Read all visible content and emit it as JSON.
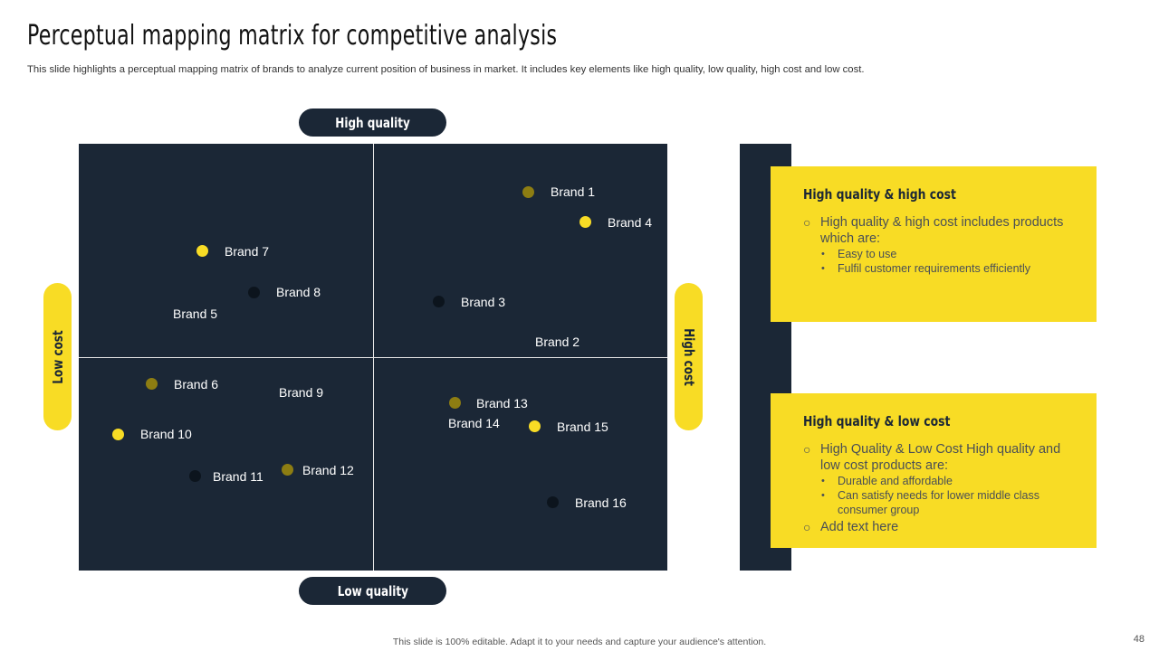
{
  "title": "Perceptual mapping matrix for competitive analysis",
  "subtitle": "This slide highlights a perceptual mapping matrix of brands to analyze current position of business in market. It includes key elements like high quality, low quality, high cost and low cost.",
  "axes": {
    "top": "High quality",
    "bottom": "Low quality",
    "left": "Low cost",
    "right": "High cost"
  },
  "brands": [
    {
      "label": "Brand 1",
      "dot": "olive"
    },
    {
      "label": "Brand 4",
      "dot": "yellow"
    },
    {
      "label": "Brand 7",
      "dot": "yellow"
    },
    {
      "label": "Brand 8",
      "dot": "dark"
    },
    {
      "label": "Brand 5",
      "dot": "none"
    },
    {
      "label": "Brand 3",
      "dot": "dark"
    },
    {
      "label": "Brand 2",
      "dot": "none"
    },
    {
      "label": "Brand 6",
      "dot": "olive"
    },
    {
      "label": "Brand 9",
      "dot": "none"
    },
    {
      "label": "Brand 13",
      "dot": "olive"
    },
    {
      "label": "Brand 14",
      "dot": "none"
    },
    {
      "label": "Brand 15",
      "dot": "yellow"
    },
    {
      "label": "Brand 10",
      "dot": "yellow"
    },
    {
      "label": "Brand 11",
      "dot": "dark"
    },
    {
      "label": "Brand 12",
      "dot": "olive"
    },
    {
      "label": "Brand 16",
      "dot": "dark"
    }
  ],
  "colors": {
    "navy": "#1b2736",
    "yellow": "#f8dc25",
    "olive": "#8d7d12",
    "dark": "#0c141d"
  },
  "cards": [
    {
      "title": "High quality  & high cost",
      "points": [
        {
          "text": "High quality & high cost includes products which are:",
          "sub": [
            "Easy to use",
            "Fulfil customer requirements  efficiently"
          ]
        }
      ]
    },
    {
      "title": "High quality  & low cost",
      "points": [
        {
          "text": "High Quality & Low Cost High quality and low cost products are:",
          "sub": [
            "Durable  and  affordable",
            "Can satisfy needs for lower middle class consumer group"
          ]
        },
        {
          "text": "Add text here",
          "sub": []
        }
      ]
    }
  ],
  "footer": "This slide is 100% editable. Adapt it to your needs and capture your audience's attention.",
  "page_number": "48"
}
